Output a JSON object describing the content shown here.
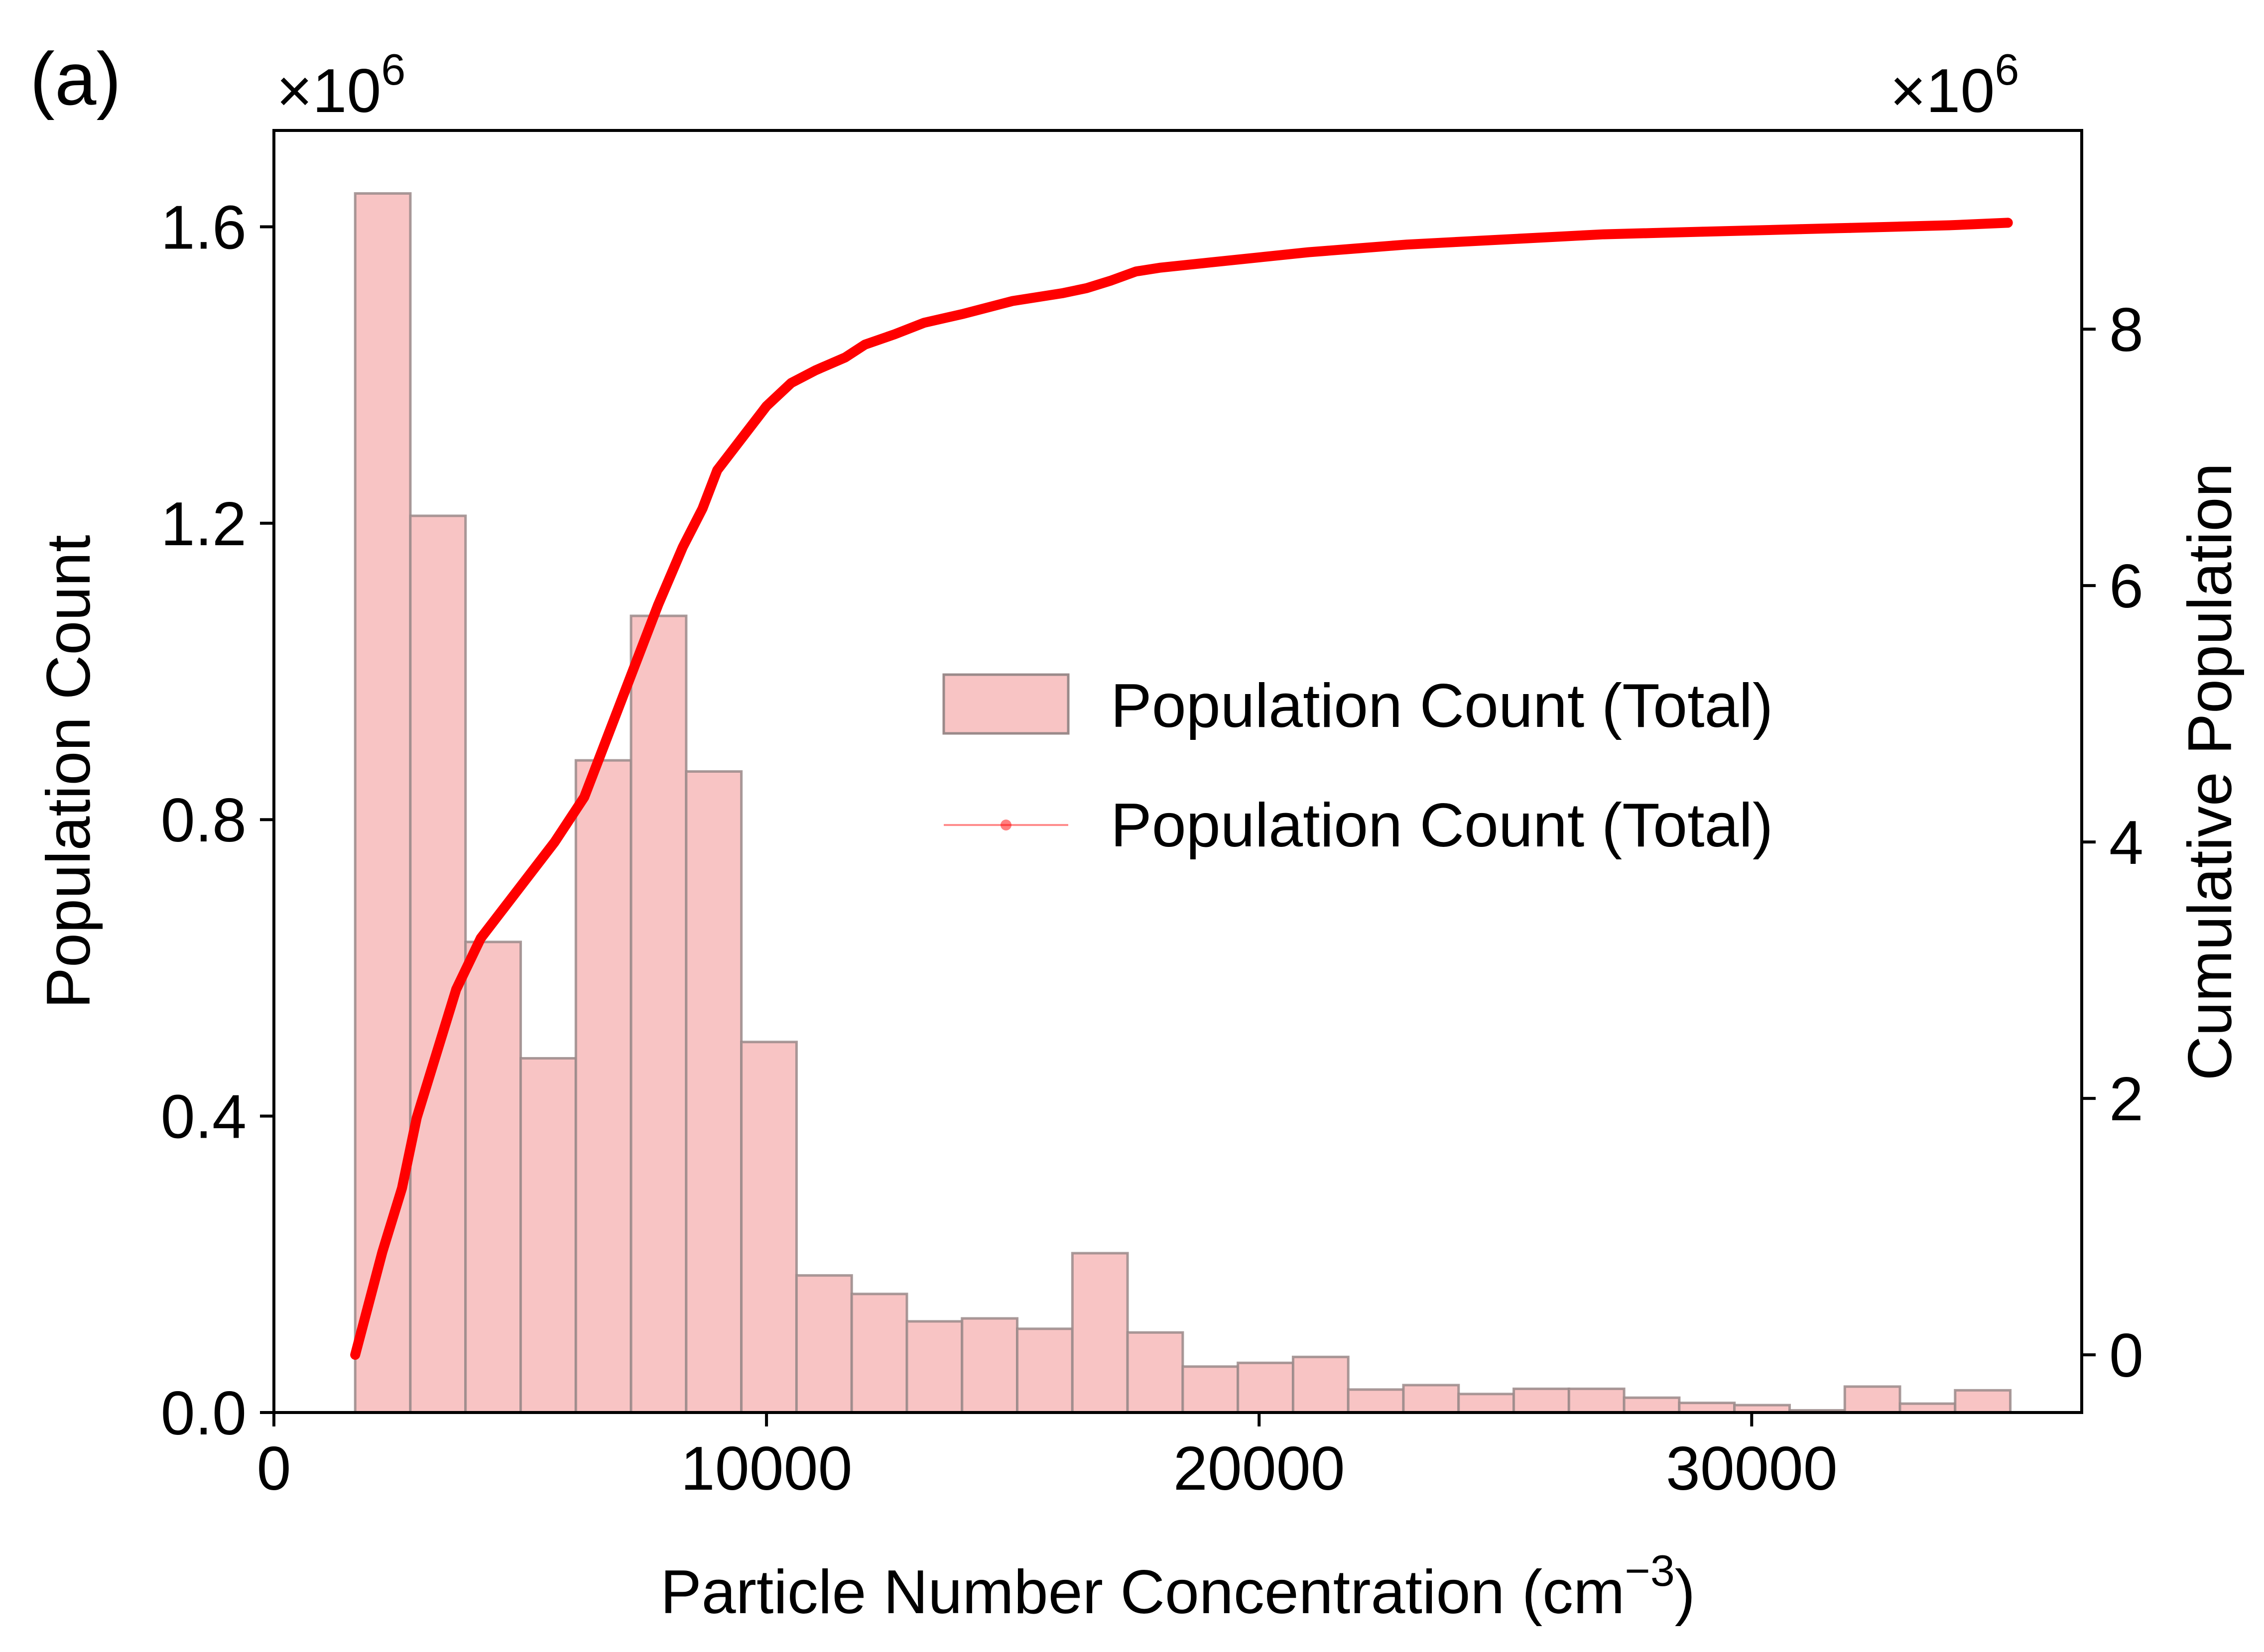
{
  "panel_label": "(a)",
  "chart_data": {
    "type": "bar",
    "xlabel": "Particle Number Concentration (cm",
    "xlabel_sup": "−3",
    "xlabel_end": ")",
    "ylabel": "Population Count",
    "y2label": "Cumulative Population",
    "y_multiplier": {
      "base": "×10",
      "exp": "6"
    },
    "y2_multiplier": {
      "base": "×10",
      "exp": "6"
    },
    "xlim": [
      0,
      36700
    ],
    "ylim": [
      0,
      1.73
    ],
    "y2lim": [
      -0.45,
      9.55
    ],
    "x_ticks": [
      0,
      10000,
      20000,
      30000
    ],
    "x_tick_labels": [
      "0",
      "10000",
      "20000",
      "30000"
    ],
    "y_ticks": [
      0.0,
      0.4,
      0.8,
      1.2,
      1.6
    ],
    "y_tick_labels": [
      "0.0",
      "0.4",
      "0.8",
      "1.2",
      "1.6"
    ],
    "y2_ticks": [
      0,
      2,
      4,
      6,
      8
    ],
    "y2_tick_labels": [
      "0",
      "2",
      "4",
      "6",
      "8"
    ],
    "grid": false,
    "legend_position": "center-right",
    "legend": [
      {
        "label": "Population Count (Total)",
        "kind": "bar"
      },
      {
        "label": "Population Count (Total)",
        "kind": "line"
      }
    ],
    "colors": {
      "bar_fill": "#f8c4c4",
      "bar_edge": "#9a8a8a",
      "line": "#ff0000"
    },
    "bin_edges": [
      1650,
      2770,
      3890,
      5010,
      6130,
      7250,
      8370,
      9490,
      10610,
      11730,
      12850,
      13970,
      15090,
      16210,
      17330,
      18450,
      19570,
      20690,
      21810,
      22930,
      24050,
      25170,
      26290,
      27410,
      28530,
      29650,
      30770,
      31890,
      33010,
      34130,
      35250
    ],
    "series": [
      {
        "name": "Population Count (Total)",
        "type": "histogram",
        "axis": "left",
        "values": [
          1.645,
          1.21,
          0.635,
          0.478,
          0.88,
          1.075,
          0.865,
          0.5,
          0.185,
          0.16,
          0.123,
          0.127,
          0.113,
          0.215,
          0.108,
          0.062,
          0.067,
          0.075,
          0.031,
          0.037,
          0.025,
          0.032,
          0.032,
          0.02,
          0.013,
          0.01,
          0.003,
          0.035,
          0.012,
          0.03
        ]
      },
      {
        "name": "Population Count (Total)",
        "type": "line",
        "axis": "right",
        "x": [
          1650,
          2200,
          2600,
          2900,
          3300,
          3700,
          4200,
          4700,
          5200,
          5700,
          6300,
          6800,
          7300,
          7800,
          8300,
          8700,
          9000,
          9500,
          10000,
          10500,
          11000,
          11600,
          12000,
          12600,
          13200,
          14000,
          15000,
          16000,
          16500,
          17000,
          17500,
          18000,
          19000,
          20000,
          21000,
          22000,
          23000,
          24000,
          25000,
          26000,
          27000,
          28000,
          29000,
          30000,
          31000,
          32000,
          33000,
          34000,
          35200
        ],
        "y": [
          0.0,
          0.8,
          1.3,
          1.85,
          2.35,
          2.85,
          3.25,
          3.5,
          3.75,
          4.0,
          4.35,
          4.85,
          5.35,
          5.85,
          6.3,
          6.6,
          6.9,
          7.15,
          7.4,
          7.58,
          7.68,
          7.78,
          7.88,
          7.96,
          8.05,
          8.12,
          8.22,
          8.28,
          8.32,
          8.38,
          8.45,
          8.48,
          8.52,
          8.56,
          8.6,
          8.63,
          8.66,
          8.68,
          8.7,
          8.72,
          8.74,
          8.75,
          8.76,
          8.77,
          8.78,
          8.79,
          8.8,
          8.81,
          8.83
        ]
      }
    ]
  }
}
